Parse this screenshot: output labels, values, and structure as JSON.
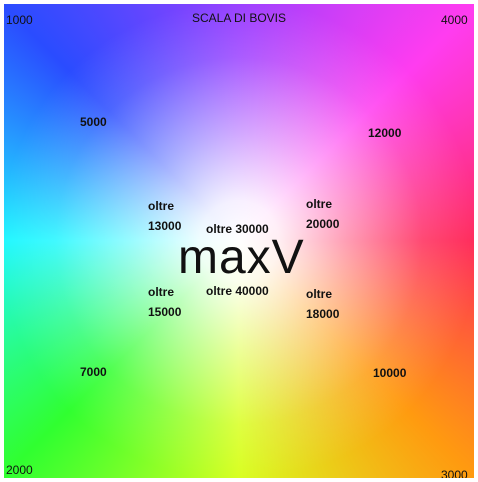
{
  "title": "SCALA DI BOVIS",
  "corners": [
    "1000",
    "4000",
    "2000",
    "3000"
  ],
  "labels": [
    [
      "5000"
    ],
    [
      "12000"
    ],
    [
      "7000"
    ],
    [
      "10000"
    ],
    [
      "oltre",
      "13000"
    ],
    [
      "oltre 30000"
    ],
    [
      "oltre",
      "20000"
    ],
    [
      "oltre",
      "15000"
    ],
    [
      "oltre 40000"
    ],
    [
      "oltre",
      "18000"
    ]
  ],
  "logo": "maxV"
}
